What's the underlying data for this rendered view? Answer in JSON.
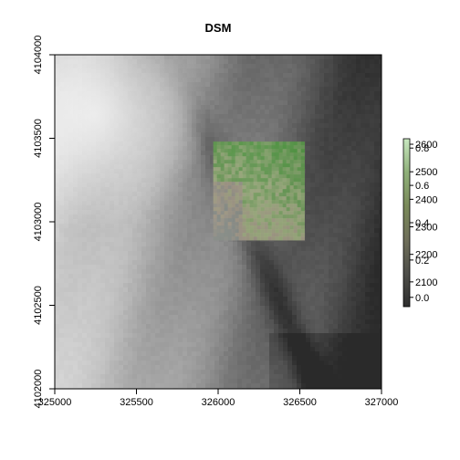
{
  "chart_data": {
    "type": "heatmap",
    "title": "DSM",
    "xlabel": "",
    "ylabel": "",
    "xlim": [
      325000,
      327000
    ],
    "ylim": [
      4102000,
      4104000
    ],
    "x_ticks": [
      "325000",
      "325500",
      "326000",
      "326500",
      "327000"
    ],
    "y_ticks": [
      "4102000",
      "4102500",
      "4103000",
      "4103500",
      "4104000"
    ],
    "raster": {
      "name": "DSM",
      "extent": {
        "xmin": 325000,
        "xmax": 327000,
        "ymin": 4102000,
        "ymax": 4104000
      },
      "value_range": [
        2010,
        2620
      ],
      "palette": [
        "#2a2a2a",
        "#5a5a5a",
        "#8f8f8f",
        "#bdbdbd",
        "#e0e0e0"
      ]
    },
    "overlay": {
      "extent": {
        "xmin": 325970,
        "xmax": 326510,
        "ymin": 4102910,
        "ymax": 4103480
      },
      "value_range": [
        0.0,
        0.8
      ],
      "palette": [
        "#8a8f8a",
        "#a59a88",
        "#a0b080",
        "#6fa05a",
        "#4f9a40"
      ]
    },
    "legend_dsm": {
      "ticks": [
        "2100",
        "2200",
        "2300",
        "2400",
        "2500",
        "2600"
      ],
      "range": [
        2010,
        2620
      ],
      "colors": [
        "#2e2e2e",
        "#4f4f4a",
        "#6f6f5a",
        "#7a8a5a",
        "#8fb07a",
        "#c8e8c0"
      ]
    },
    "legend_overlay": {
      "ticks": [
        "0.0",
        "0.2",
        "0.4",
        "0.6",
        "0.8"
      ],
      "range": [
        -0.05,
        0.85
      ]
    },
    "legend_placement": "right",
    "grid": false
  }
}
